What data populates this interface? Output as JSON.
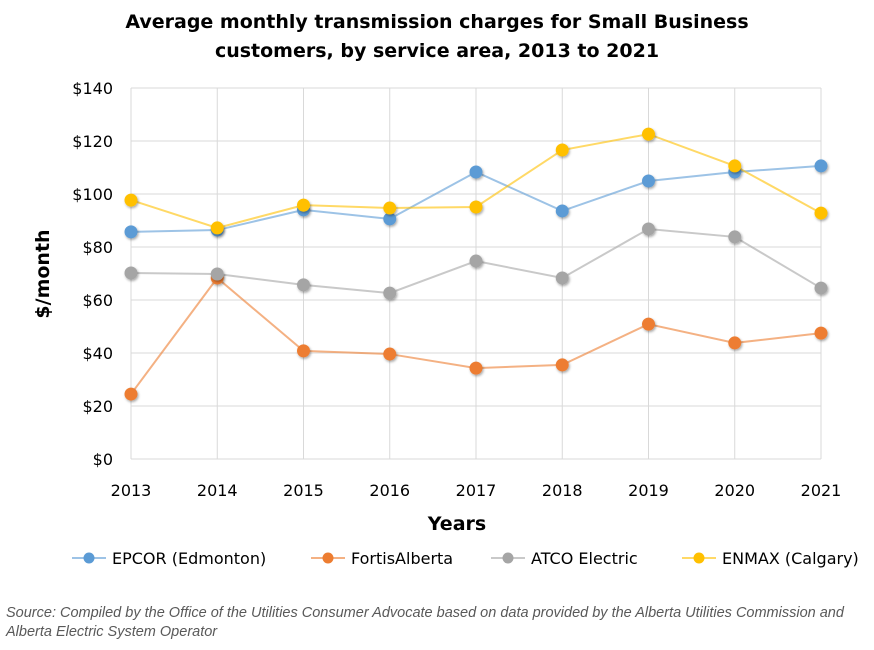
{
  "chart_data": {
    "type": "line",
    "title": "Average monthly transmission charges for Small Business customers, by service area, 2013 to 2021",
    "title_lines": [
      "Average monthly transmission charges for Small Business",
      "customers, by service area, 2013 to 2021"
    ],
    "xlabel": "Years",
    "ylabel": "$/month",
    "x": [
      "2013",
      "2014",
      "2015",
      "2016",
      "2017",
      "2018",
      "2019",
      "2020",
      "2021"
    ],
    "ylim": [
      0,
      140
    ],
    "yticks": [
      0,
      20,
      40,
      60,
      80,
      100,
      120,
      140
    ],
    "ytick_labels": [
      "$0",
      "$20",
      "$40",
      "$60",
      "$80",
      "$100",
      "$120",
      "$140"
    ],
    "grid": true,
    "legend_position": "bottom",
    "series": [
      {
        "name": "EPCOR (Edmonton)",
        "color": "#5B9BD5",
        "values": [
          85.7,
          86.4,
          94,
          90.6,
          108.3,
          93.6,
          104.9,
          108.3,
          110.6
        ]
      },
      {
        "name": "FortisAlberta",
        "color": "#ED7D31",
        "values": [
          24.5,
          68.3,
          40.8,
          39.6,
          34.3,
          35.5,
          50.9,
          43.8,
          47.5
        ]
      },
      {
        "name": "ATCO Electric",
        "color": "#A5A5A5",
        "values": [
          70.2,
          69.8,
          65.7,
          62.6,
          74.7,
          68.3,
          86.8,
          83.8,
          64.5
        ]
      },
      {
        "name": "ENMAX (Calgary)",
        "color": "#FFC000",
        "values": [
          97.7,
          87.2,
          95.8,
          94.7,
          95.1,
          116.6,
          122.6,
          110.6,
          92.8
        ]
      }
    ]
  },
  "source": "Source: Compiled by the Office of the Utilities Consumer Advocate based on data provided by the Alberta Utilities Commission and Alberta Electric System Operator"
}
